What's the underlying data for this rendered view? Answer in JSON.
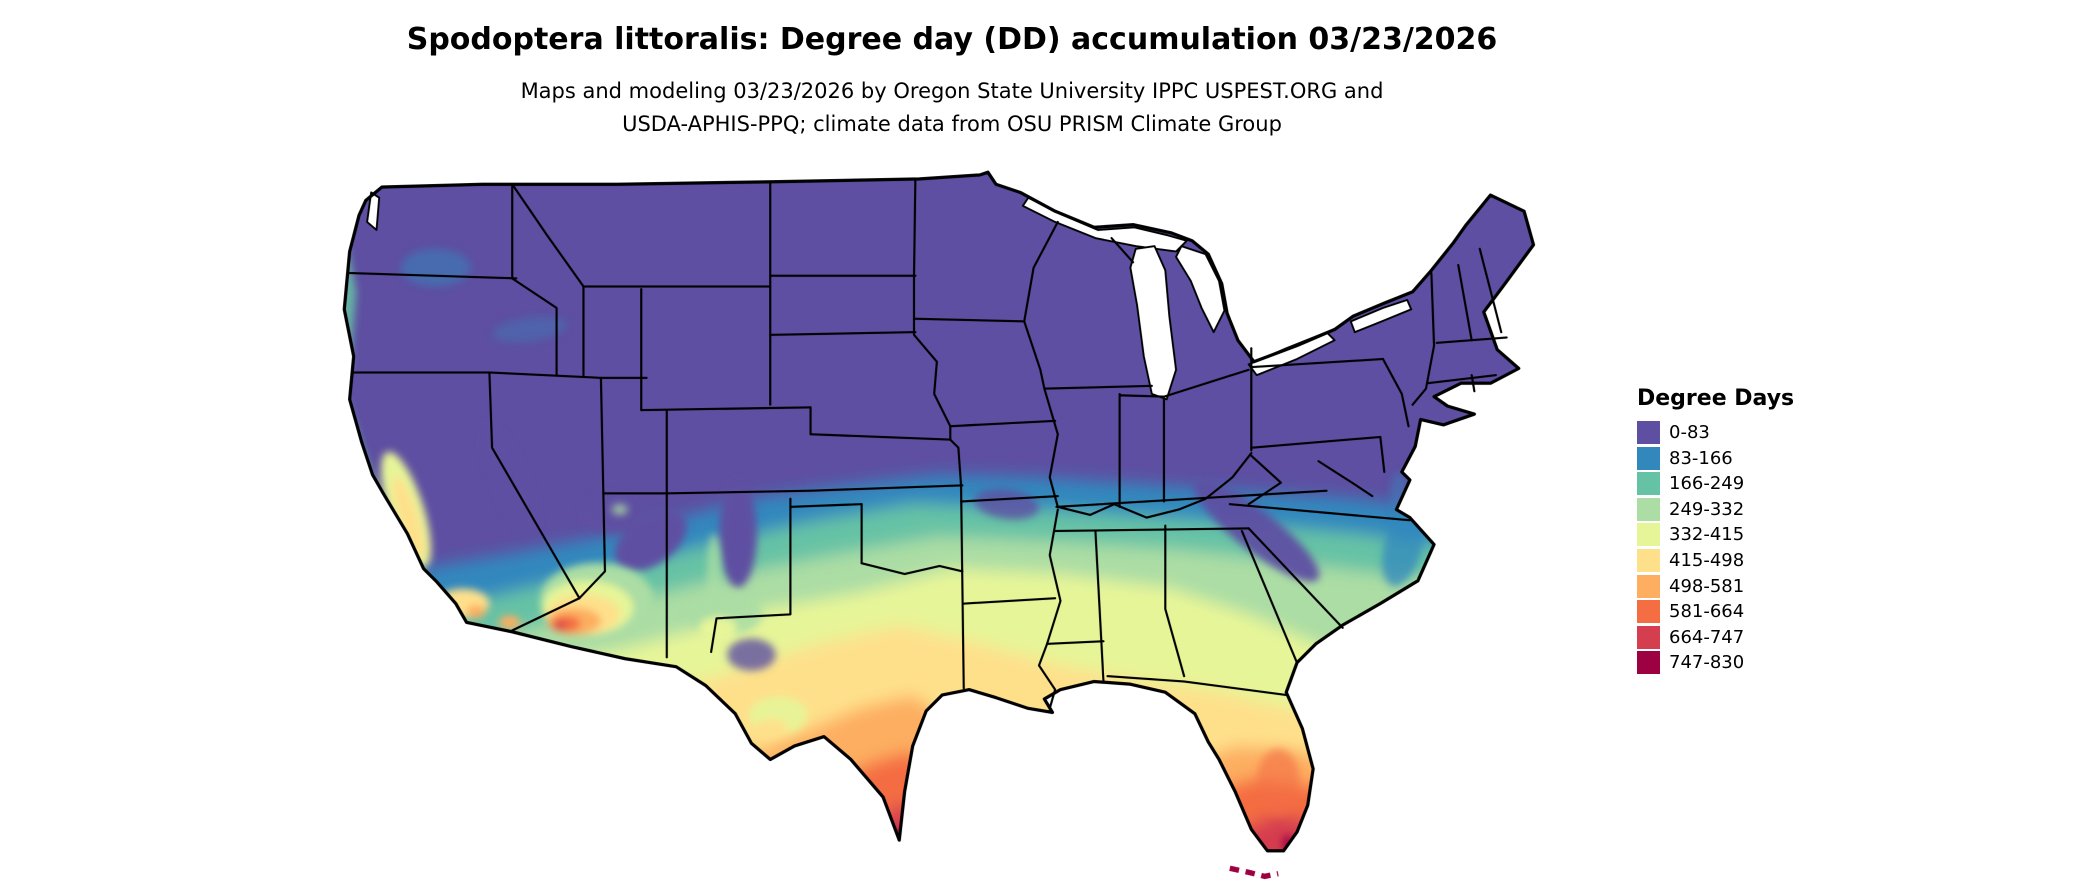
{
  "title": "Spodoptera littoralis: Degree day (DD) accumulation 03/23/2026",
  "subtitle": {
    "line1": "Maps and modeling 03/23/2026 by Oregon State University IPPC USPEST.ORG and",
    "line2": "USDA-APHIS-PPQ; climate data from OSU PRISM Climate Group"
  },
  "legend": {
    "title": "Degree Days",
    "items": [
      {
        "label": "0-83",
        "color": "#5e4fa2"
      },
      {
        "label": "83-166",
        "color": "#3288bd"
      },
      {
        "label": "166-249",
        "color": "#66c2a5"
      },
      {
        "label": "249-332",
        "color": "#abdda4"
      },
      {
        "label": "332-415",
        "color": "#e6f598"
      },
      {
        "label": "415-498",
        "color": "#fee08b"
      },
      {
        "label": "498-581",
        "color": "#fdae61"
      },
      {
        "label": "581-664",
        "color": "#f46d43"
      },
      {
        "label": "664-747",
        "color": "#d53e4f"
      },
      {
        "label": "747-830",
        "color": "#9e0142"
      }
    ]
  },
  "map": {
    "region": "Contiguous United States",
    "border_color": "#000000",
    "background": "#ffffff"
  }
}
